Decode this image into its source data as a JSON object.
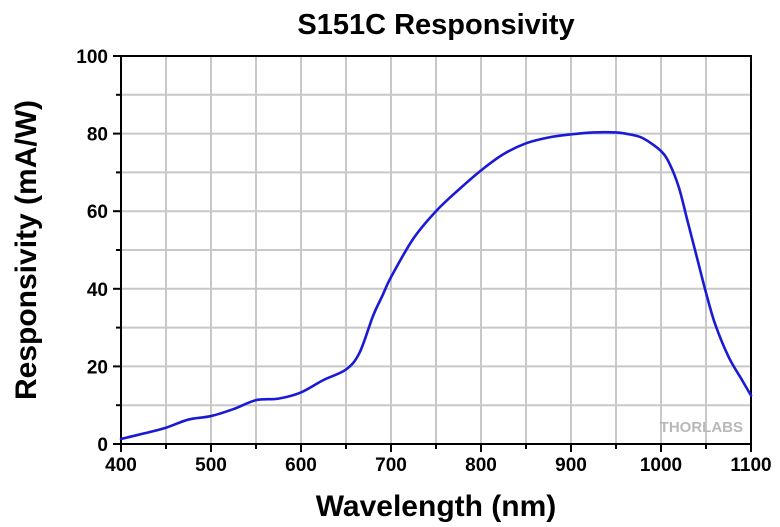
{
  "chart_data": {
    "type": "line",
    "title": "S151C Responsivity",
    "xlabel": "Wavelength (nm)",
    "ylabel": "Responsivity (mA/W)",
    "xlim": [
      400,
      1100
    ],
    "ylim": [
      0,
      100
    ],
    "xticks": [
      400,
      500,
      600,
      700,
      800,
      900,
      1000,
      1100
    ],
    "yticks": [
      0,
      20,
      40,
      60,
      80,
      100
    ],
    "grid": true,
    "watermark": "THORLABS",
    "series": [
      {
        "color": "#1a1ad6",
        "x": [
          400,
          425,
          450,
          475,
          500,
          525,
          550,
          575,
          600,
          625,
          650,
          665,
          680,
          690,
          700,
          725,
          750,
          775,
          800,
          825,
          850,
          875,
          900,
          925,
          950,
          965,
          980,
          1000,
          1010,
          1020,
          1030,
          1040,
          1050,
          1060,
          1075,
          1090,
          1100
        ],
        "y": [
          1.3,
          2.7,
          4.2,
          6.3,
          7.2,
          9.0,
          11.3,
          11.7,
          13.3,
          16.5,
          19.2,
          23.5,
          33.0,
          38.0,
          43.0,
          53.0,
          60.0,
          65.5,
          70.5,
          74.7,
          77.5,
          79.0,
          79.8,
          80.3,
          80.3,
          79.8,
          78.8,
          75.5,
          72.0,
          66.0,
          57.0,
          48.0,
          39.0,
          31.0,
          22.5,
          16.5,
          12.5
        ]
      }
    ]
  }
}
